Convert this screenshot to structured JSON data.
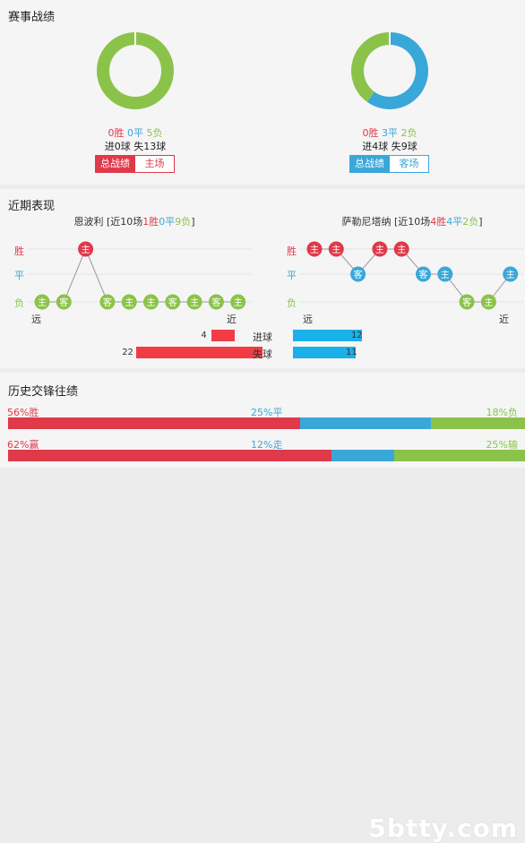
{
  "colors": {
    "win": "#e0394a",
    "draw": "#3aa7d9",
    "loss": "#8bc34a",
    "bar_red": "#f23c44",
    "bar_blue": "#1ab0e8"
  },
  "record": {
    "title": "赛事战绩",
    "left": {
      "win": "0胜",
      "draw": "0平",
      "loss": "5负",
      "goals": "进0球  失13球",
      "btn_total": "总战绩",
      "btn_venue": "主场",
      "donut": [
        0,
        0,
        5
      ]
    },
    "right": {
      "win": "0胜",
      "draw": "3平",
      "loss": "2负",
      "goals": "进4球  失9球",
      "btn_total": "总战绩",
      "btn_venue": "客场",
      "donut": [
        0,
        3,
        2
      ]
    }
  },
  "recent": {
    "title": "近期表现",
    "y_labels": {
      "win": "胜",
      "draw": "平",
      "loss": "负"
    },
    "far": "远",
    "near": "近",
    "left": {
      "title_prefix": "恩波利 [近10场",
      "w": "1胜",
      "d": "0平",
      "l": "9负",
      "title_suffix": "]",
      "results": [
        "L",
        "L",
        "W",
        "L",
        "L",
        "L",
        "L",
        "L",
        "L",
        "L"
      ],
      "venues": [
        "主",
        "客",
        "主",
        "客",
        "主",
        "主",
        "客",
        "主",
        "客",
        "主"
      ]
    },
    "right": {
      "title_prefix": "萨勒尼塔纳 [近10场",
      "w": "4胜",
      "d": "4平",
      "l": "2负",
      "title_suffix": "]",
      "results": [
        "W",
        "W",
        "D",
        "W",
        "W",
        "D",
        "D",
        "L",
        "L",
        "D"
      ],
      "venues": [
        "主",
        "主",
        "客",
        "主",
        "主",
        "客",
        "主",
        "客",
        "主",
        "主"
      ]
    },
    "goals": {
      "scored_label": "进球",
      "conceded_label": "失球",
      "left_scored": 4,
      "right_scored": 12,
      "left_conceded": 22,
      "right_conceded": 11
    }
  },
  "history": {
    "title": "历史交锋往绩",
    "row1": {
      "left": "56%胜",
      "mid": "25%平",
      "right": "18%负",
      "p": [
        56,
        25,
        18
      ]
    },
    "row2": {
      "left": "62%赢",
      "mid": "12%走",
      "right": "25%输",
      "p": [
        62,
        12,
        25
      ]
    }
  },
  "watermark": "5btty.com"
}
